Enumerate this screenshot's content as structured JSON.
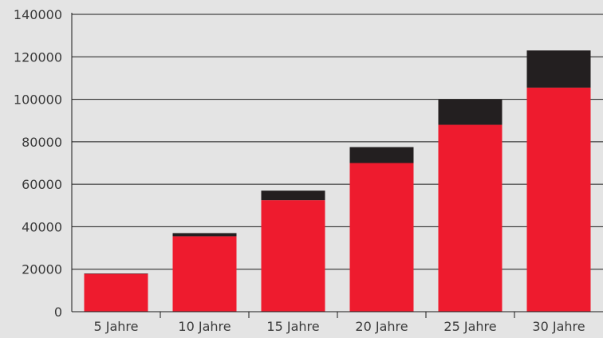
{
  "chart_data": {
    "type": "bar",
    "stacked": true,
    "title": "",
    "xlabel": "",
    "ylabel": "",
    "categories": [
      "5 Jahre",
      "10 Jahre",
      "15 Jahre",
      "20 Jahre",
      "25 Jahre",
      "30 Jahre"
    ],
    "series": [
      {
        "values": [
          17800,
          35500,
          52500,
          70000,
          88000,
          105500
        ],
        "color": "#ee1b2e"
      },
      {
        "values": [
          200,
          1500,
          4500,
          7500,
          12000,
          17500
        ],
        "color": "#231f20"
      }
    ],
    "totals": [
      18000,
      37000,
      57000,
      77500,
      100000,
      123000
    ],
    "ylim": [
      0,
      140000
    ],
    "yticks": [
      "0",
      "20000",
      "40000",
      "60000",
      "80000",
      "100000",
      "120000",
      "140000"
    ],
    "grid": true,
    "legend": "none"
  }
}
